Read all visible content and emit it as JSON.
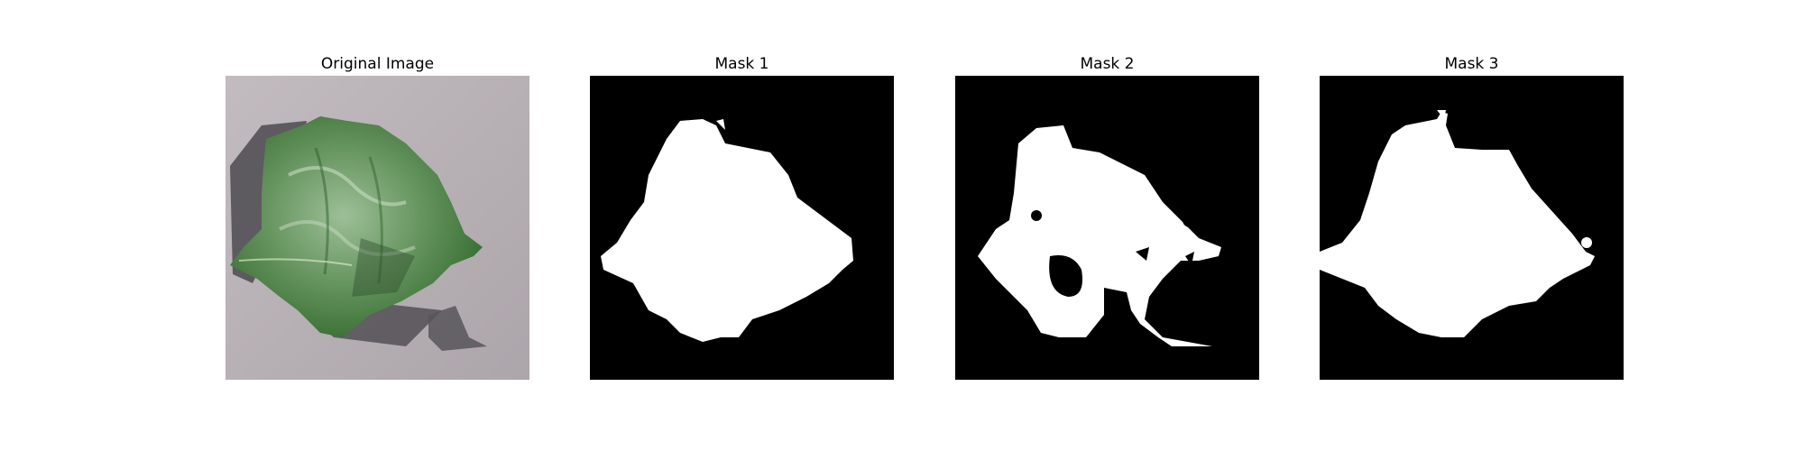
{
  "figure": {
    "panels": [
      {
        "title": "Original Image",
        "kind": "photo"
      },
      {
        "title": "Mask 1",
        "kind": "mask"
      },
      {
        "title": "Mask 2",
        "kind": "mask"
      },
      {
        "title": "Mask 3",
        "kind": "mask"
      }
    ]
  },
  "colors": {
    "background": "#ffffff",
    "mask_bg": "#000000",
    "mask_fg": "#ffffff",
    "photo_surface": "#b8b0b4",
    "leaf_dark": "#3f7a3a",
    "leaf_light": "#8fb08a",
    "shadow": "#4a4a4e"
  }
}
